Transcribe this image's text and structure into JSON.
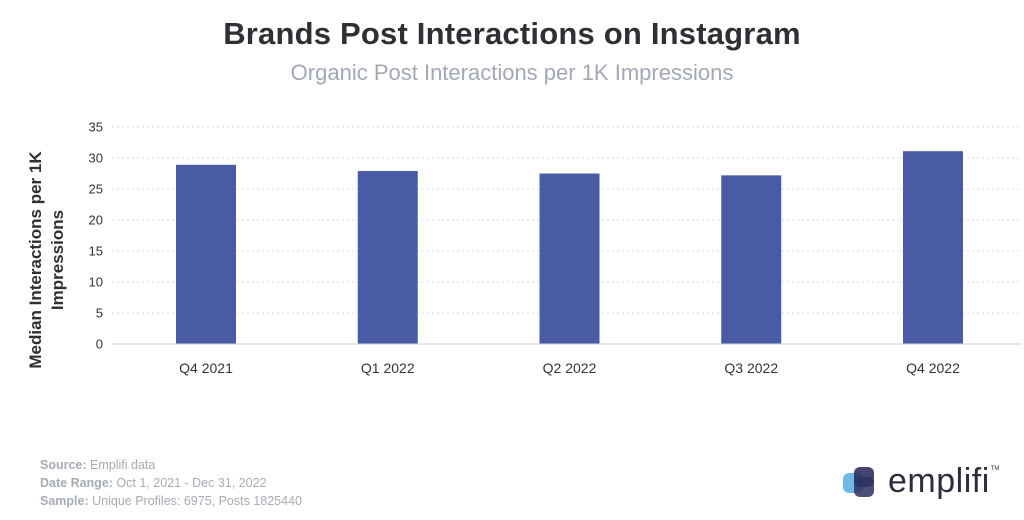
{
  "header": {
    "title": "Brands Post Interactions on Instagram",
    "subtitle": "Organic Post Interactions per 1K Impressions"
  },
  "chart_data": {
    "type": "bar",
    "title": "Brands Post Interactions on Instagram",
    "subtitle": "Organic Post Interactions per 1K Impressions",
    "xlabel": "",
    "ylabel": "Median Interactions per 1K Impressions",
    "categories": [
      "Q4 2021",
      "Q1 2022",
      "Q2 2022",
      "Q3 2022",
      "Q4 2022"
    ],
    "values": [
      28.9,
      27.9,
      27.5,
      27.2,
      31.1
    ],
    "ylim": [
      0,
      35
    ],
    "yticks": [
      0,
      5,
      10,
      15,
      20,
      25,
      30,
      35
    ],
    "grid": true,
    "bar_color": "#4a5ba6"
  },
  "footer": {
    "source_label": "Source:",
    "source_value": "Emplifi data",
    "date_label": "Date Range:",
    "date_value": "Oct 1, 2021 - Dec 31, 2022",
    "sample_label": "Sample:",
    "sample_value": "Unique Profiles: 6975, Posts 1825440"
  },
  "logo": {
    "text": "emplifi",
    "tm": "TM",
    "colors": [
      "#5fb2e0",
      "#2d3160"
    ]
  }
}
